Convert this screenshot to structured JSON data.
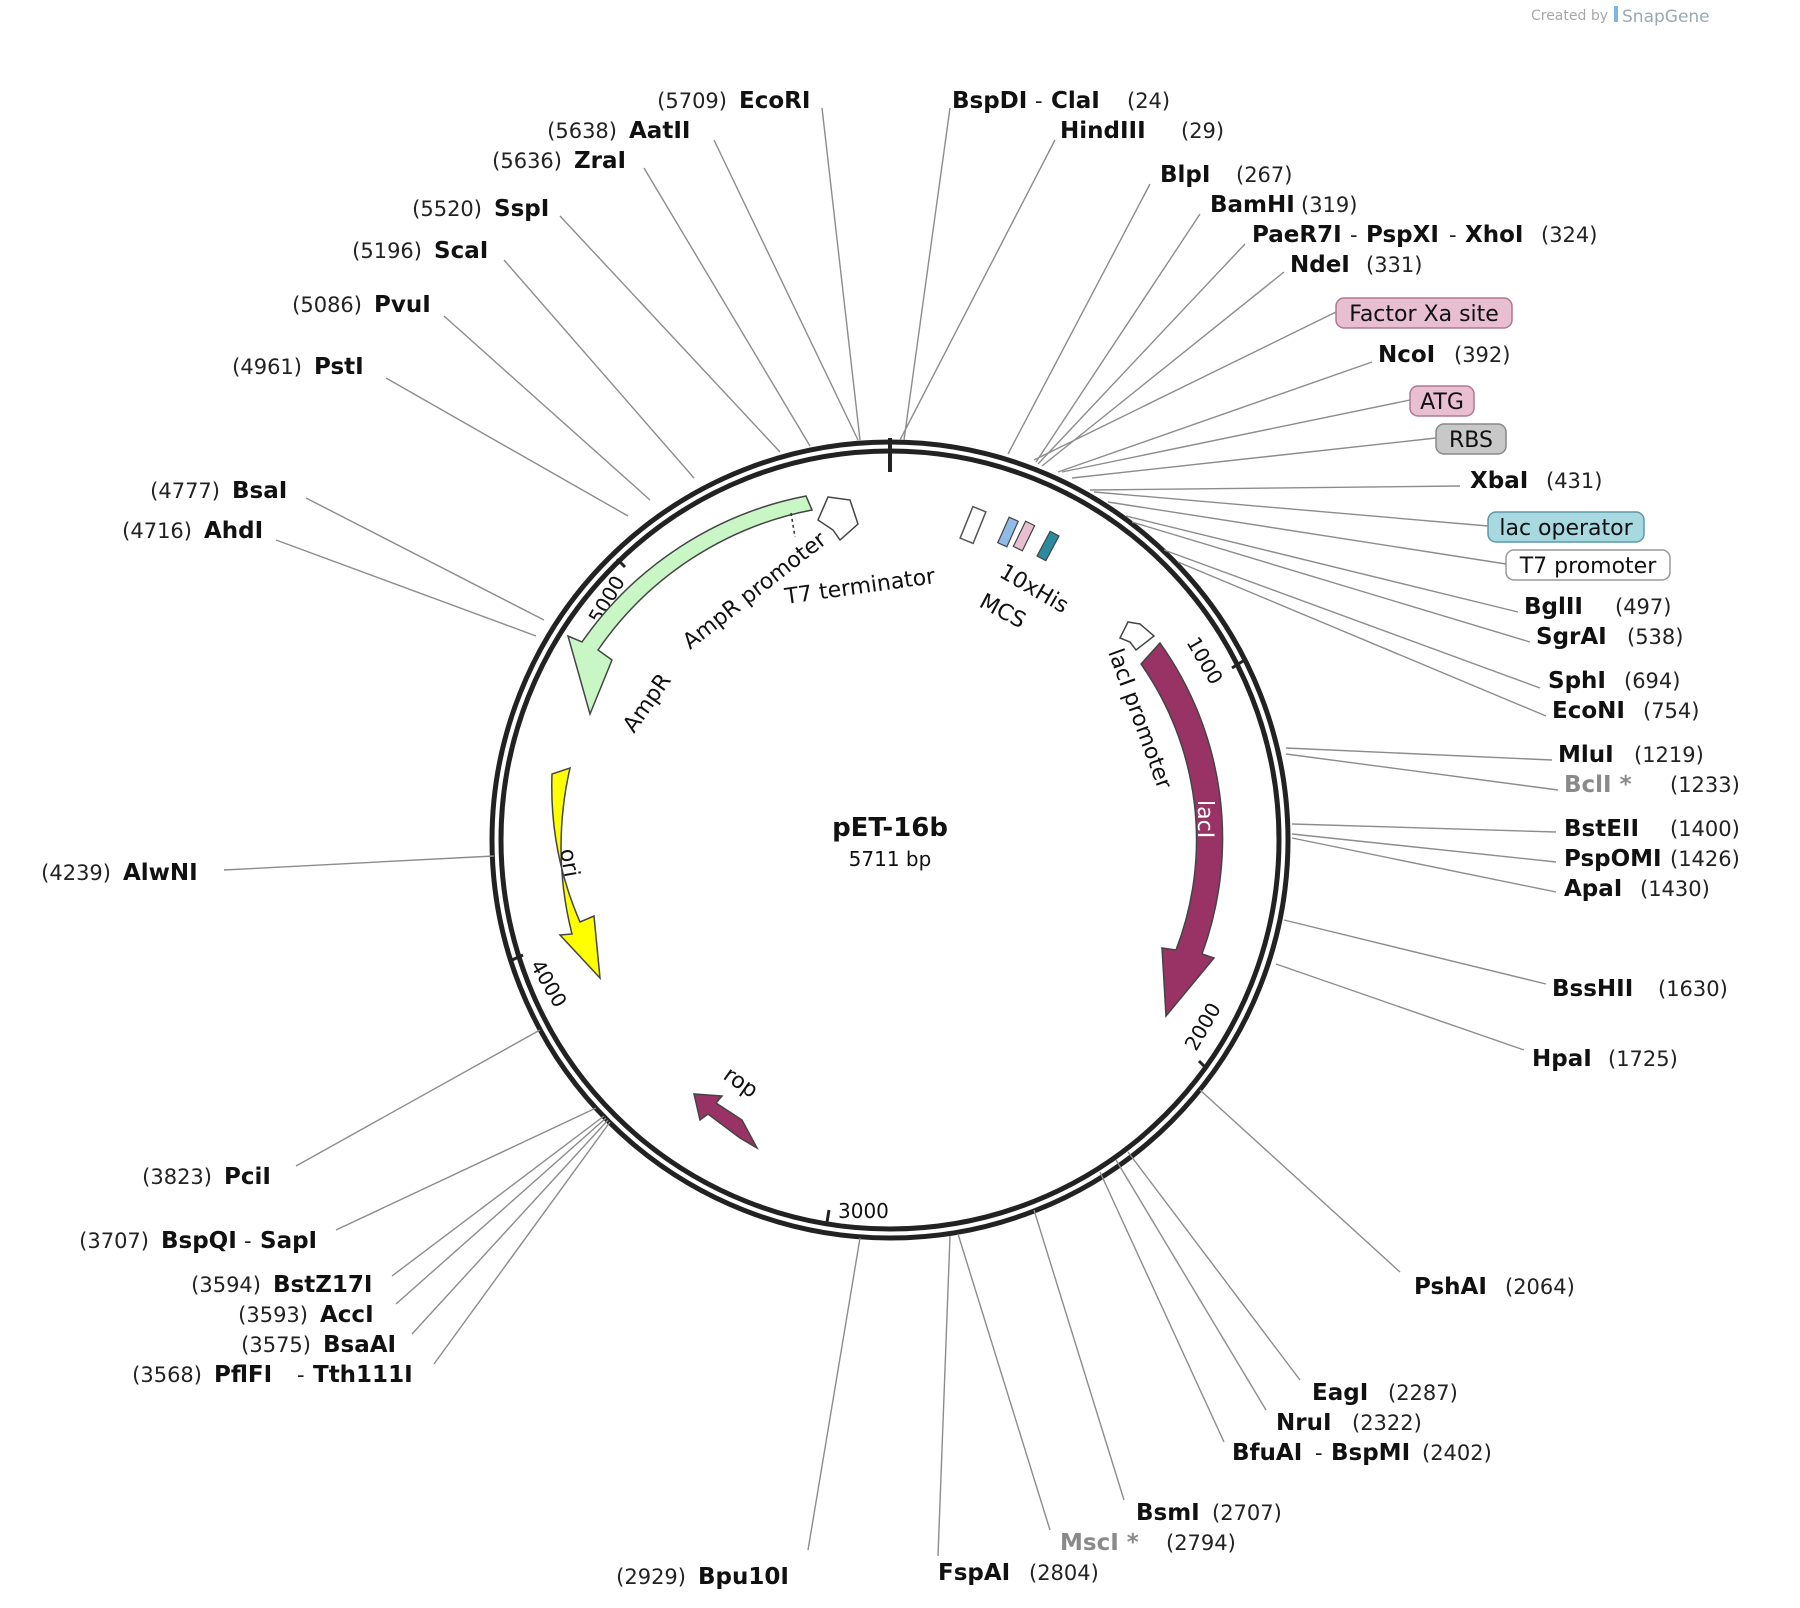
{
  "credit": {
    "prefix": "Created by",
    "brand": "SnapGene"
  },
  "plasmid": {
    "name": "pET-16b",
    "size": "5711 bp"
  },
  "colors": {
    "ampr": "#c8f7c5",
    "lacI": "#993366",
    "ori": "#ffff00",
    "rop": "#993366",
    "his": "#3a8bb0",
    "factor_xa": "#e8bfd0",
    "atg": "#e8bfd0",
    "rbs": "#c8c8c8",
    "lac_operator": "#a8d8e0",
    "t7_promoter": "#ffffff"
  },
  "ticks": [
    "1000",
    "2000",
    "3000",
    "4000",
    "5000"
  ],
  "features": {
    "ampr_promoter": "AmpR promoter",
    "ampr": "AmpR",
    "t7_terminator": "T7 terminator",
    "mcs": "MCS",
    "his": "10xHis",
    "laci_promoter": "lacI promoter",
    "laci": "lacI",
    "ori": "ori",
    "rop": "rop"
  },
  "boxes": {
    "factor_xa": "Factor Xa site",
    "atg": "ATG",
    "rbs": "RBS",
    "lac_operator": "lac operator",
    "t7_promoter": "T7 promoter"
  },
  "sites_right": [
    {
      "names": [
        "BspDI",
        "ClaI"
      ],
      "pos": "(24)"
    },
    {
      "names": [
        "HindIII"
      ],
      "pos": "(29)"
    },
    {
      "names": [
        "BlpI"
      ],
      "pos": "(267)"
    },
    {
      "names": [
        "BamHI"
      ],
      "pos": "(319)"
    },
    {
      "names": [
        "PaeR7I",
        "PspXI",
        "XhoI"
      ],
      "pos": "(324)"
    },
    {
      "names": [
        "NdeI"
      ],
      "pos": "(331)"
    },
    {
      "names": [
        "NcoI"
      ],
      "pos": "(392)"
    },
    {
      "names": [
        "XbaI"
      ],
      "pos": "(431)"
    },
    {
      "names": [
        "BglII"
      ],
      "pos": "(497)"
    },
    {
      "names": [
        "SgrAI"
      ],
      "pos": "(538)"
    },
    {
      "names": [
        "SphI"
      ],
      "pos": "(694)"
    },
    {
      "names": [
        "EcoNI"
      ],
      "pos": "(754)"
    },
    {
      "names": [
        "MluI"
      ],
      "pos": "(1219)"
    },
    {
      "names": [
        "BclI *"
      ],
      "pos": "(1233)"
    },
    {
      "names": [
        "BstEII"
      ],
      "pos": "(1400)"
    },
    {
      "names": [
        "PspOMI"
      ],
      "pos": "(1426)"
    },
    {
      "names": [
        "ApaI"
      ],
      "pos": "(1430)"
    },
    {
      "names": [
        "BssHII"
      ],
      "pos": "(1630)"
    },
    {
      "names": [
        "HpaI"
      ],
      "pos": "(1725)"
    },
    {
      "names": [
        "PshAI"
      ],
      "pos": "(2064)"
    },
    {
      "names": [
        "EagI"
      ],
      "pos": "(2287)"
    },
    {
      "names": [
        "NruI"
      ],
      "pos": "(2322)"
    },
    {
      "names": [
        "BfuAI",
        "BspMI"
      ],
      "pos": "(2402)"
    },
    {
      "names": [
        "BsmI"
      ],
      "pos": "(2707)"
    },
    {
      "names": [
        "MscI *"
      ],
      "pos": "(2794)"
    },
    {
      "names": [
        "FspAI"
      ],
      "pos": "(2804)"
    }
  ],
  "sites_left": [
    {
      "names": [
        "EcoRI"
      ],
      "pos": "(5709)"
    },
    {
      "names": [
        "AatII"
      ],
      "pos": "(5638)"
    },
    {
      "names": [
        "ZraI"
      ],
      "pos": "(5636)"
    },
    {
      "names": [
        "SspI"
      ],
      "pos": "(5520)"
    },
    {
      "names": [
        "ScaI"
      ],
      "pos": "(5196)"
    },
    {
      "names": [
        "PvuI"
      ],
      "pos": "(5086)"
    },
    {
      "names": [
        "PstI"
      ],
      "pos": "(4961)"
    },
    {
      "names": [
        "BsaI"
      ],
      "pos": "(4777)"
    },
    {
      "names": [
        "AhdI"
      ],
      "pos": "(4716)"
    },
    {
      "names": [
        "AlwNI"
      ],
      "pos": "(4239)"
    },
    {
      "names": [
        "PciI"
      ],
      "pos": "(3823)"
    },
    {
      "names": [
        "BspQI",
        "SapI"
      ],
      "pos": "(3707)"
    },
    {
      "names": [
        "BstZ17I"
      ],
      "pos": "(3594)"
    },
    {
      "names": [
        "AccI"
      ],
      "pos": "(3593)"
    },
    {
      "names": [
        "BsaAI"
      ],
      "pos": "(3575)"
    },
    {
      "names": [
        "PflFI",
        "Tth111I"
      ],
      "pos": "(3568)"
    },
    {
      "names": [
        "Bpu10I"
      ],
      "pos": "(2929)"
    }
  ]
}
